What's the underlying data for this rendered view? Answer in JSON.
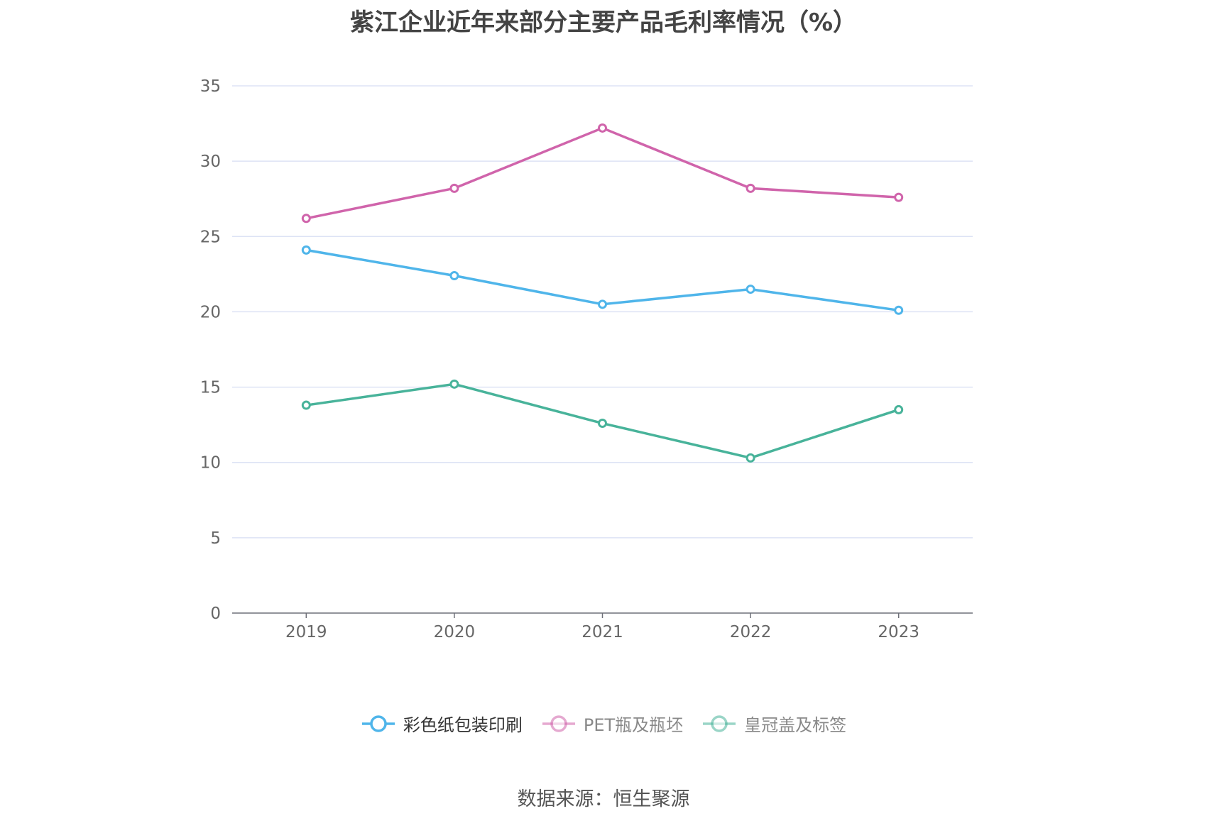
{
  "chart_data": {
    "type": "line",
    "title": "紫江企业近年来部分主要产品毛利率情况（%）",
    "categories": [
      "2019",
      "2020",
      "2021",
      "2022",
      "2023"
    ],
    "series": [
      {
        "name": "彩色纸包装印刷",
        "color": "#4fb5ea",
        "values": [
          24.1,
          22.4,
          20.5,
          21.5,
          20.1
        ],
        "legend_active": true
      },
      {
        "name": "PET瓶及瓶坯",
        "color": "#d064ab",
        "values": [
          26.2,
          28.2,
          32.2,
          28.2,
          27.6
        ],
        "legend_active": false
      },
      {
        "name": "皇冠盖及标签",
        "color": "#48b39a",
        "values": [
          13.8,
          15.2,
          12.6,
          10.3,
          13.5
        ],
        "legend_active": false
      }
    ],
    "y_ticks": [
      0,
      5,
      10,
      15,
      20,
      25,
      30,
      35
    ],
    "ylim": [
      0,
      35
    ],
    "grid": true,
    "legend_position": "bottom"
  },
  "source": "数据来源：恒生聚源"
}
